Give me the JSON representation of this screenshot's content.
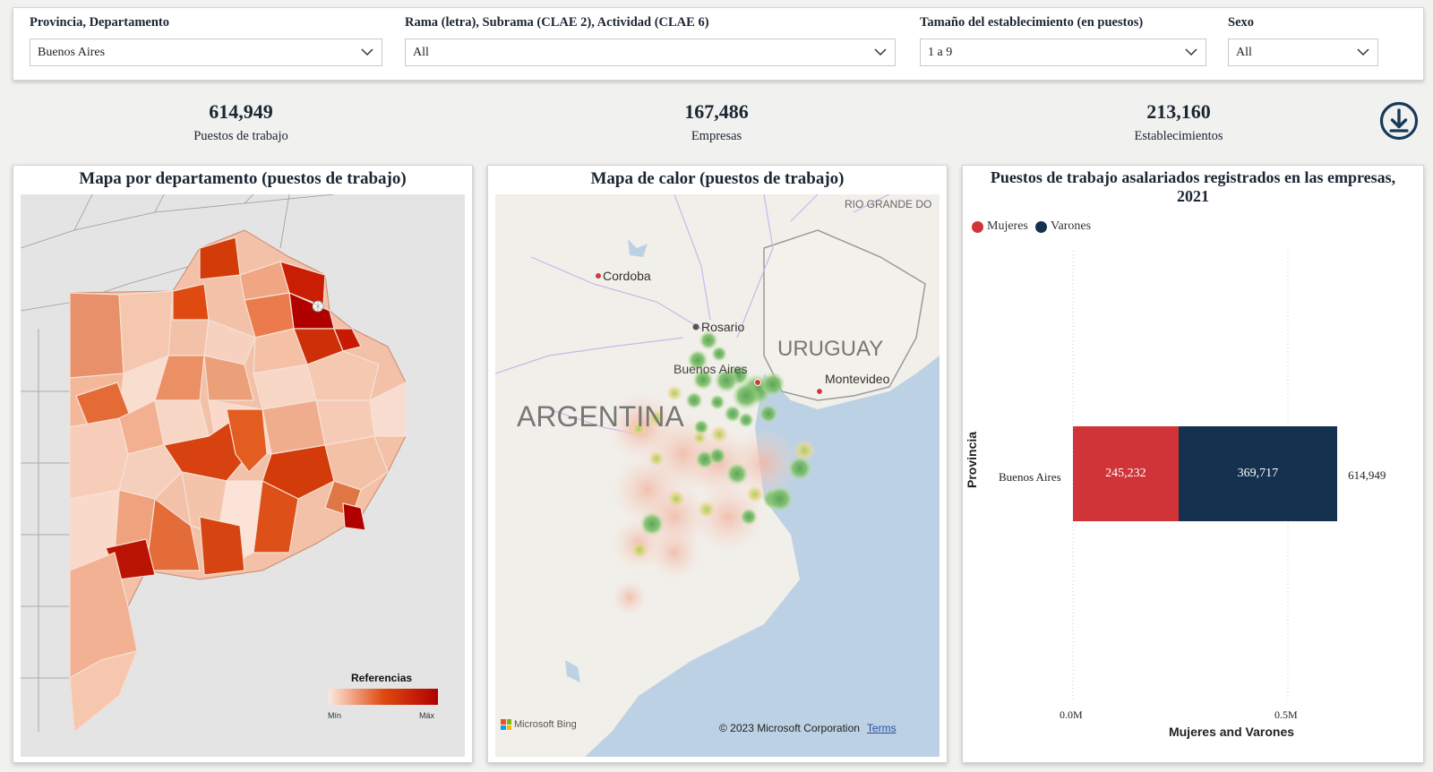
{
  "filters": [
    {
      "label": "Provincia, Departamento",
      "value": "Buenos Aires"
    },
    {
      "label": "Rama (letra), Subrama (CLAE 2), Actividad (CLAE 6)",
      "value": "All"
    },
    {
      "label": "Tamaño del establecimiento (en puestos)",
      "value": "1 a 9"
    },
    {
      "label": "Sexo",
      "value": "All"
    }
  ],
  "kpis": [
    {
      "value": "614,949",
      "label": "Puestos de trabajo"
    },
    {
      "value": "167,486",
      "label": "Empresas"
    },
    {
      "value": "213,160",
      "label": "Establecimientos"
    }
  ],
  "download_icon": "download-circle-icon",
  "map_panel": {
    "title": "Mapa por departamento (puestos de trabajo)",
    "legend_title": "Referencias",
    "legend_min": "Mín",
    "legend_max": "Máx",
    "colors": {
      "low": "#fce9df",
      "mid": "#e04a10",
      "high": "#b00000"
    }
  },
  "heat_panel": {
    "title": "Mapa de calor (puestos de trabajo)",
    "labels": {
      "cordoba": "Cordoba",
      "rosario": "Rosario",
      "buenos_aires": "Buenos Aires",
      "uruguay": "URUGUAY",
      "montevideo": "Montevideo",
      "argentina": "ARGENTINA",
      "rio_grande": "RIO GRANDE DO"
    },
    "bing": "Microsoft Bing",
    "copyright": "© 2023 Microsoft Corporation",
    "terms": "Terms"
  },
  "bar_panel": {
    "title_line1": "Puestos de trabajo asalariados registrados en las empresas,",
    "title_line2": "2021",
    "y_axis_title": "Provincia",
    "x_axis_title": "Mujeres and Varones",
    "x_ticks": [
      "0.0M",
      "0.5M"
    ],
    "category": "Buenos Aires",
    "total_label": "614,949",
    "legend": [
      {
        "name": "Mujeres",
        "color": "#d13438"
      },
      {
        "name": "Varones",
        "color": "#14324f"
      }
    ]
  },
  "chart_data": {
    "type": "bar",
    "orientation": "horizontal",
    "stacked": true,
    "title": "Puestos de trabajo asalariados registrados en las empresas, 2021",
    "categories": [
      "Buenos Aires"
    ],
    "series": [
      {
        "name": "Mujeres",
        "values": [
          245232
        ],
        "labels": [
          "245,232"
        ],
        "color": "#d13438"
      },
      {
        "name": "Varones",
        "values": [
          369717
        ],
        "labels": [
          "369,717"
        ],
        "color": "#14324f"
      }
    ],
    "totals": [
      614949
    ],
    "xlabel": "Mujeres and Varones",
    "ylabel": "Provincia",
    "xlim": [
      0,
      600000
    ],
    "x_ticks": [
      "0.0M",
      "0.5M"
    ],
    "legend_position": "top-left",
    "grid": "dotted vertical"
  }
}
